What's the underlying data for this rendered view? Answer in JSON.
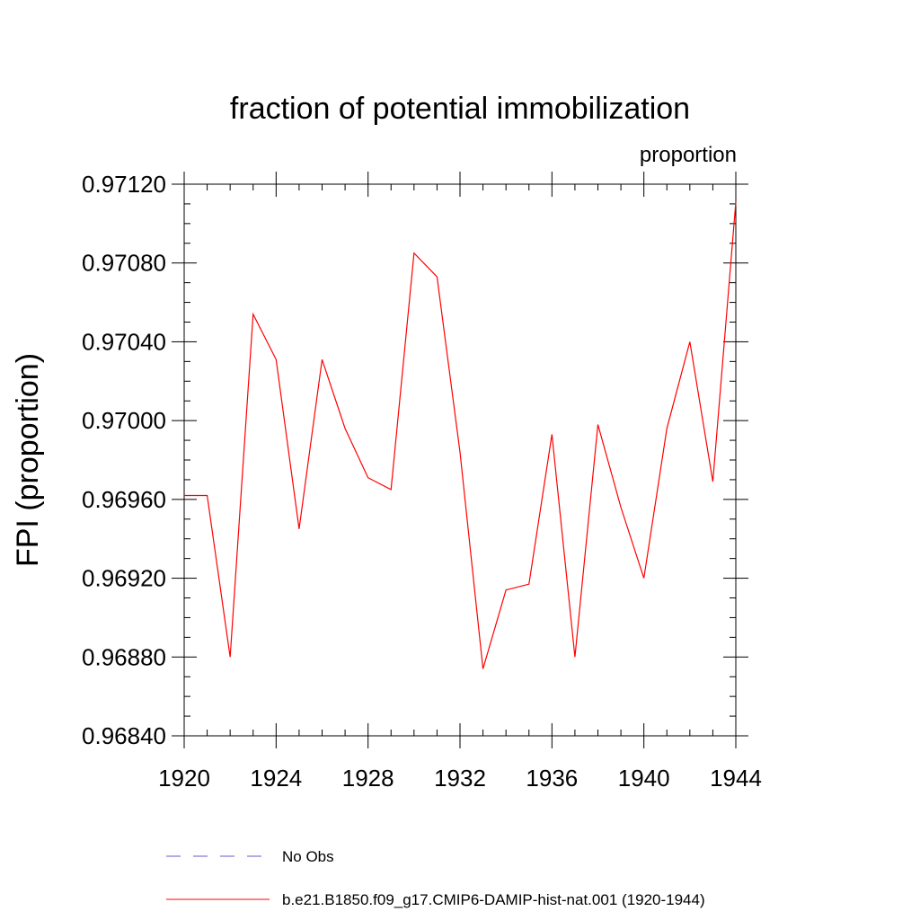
{
  "chart_data": {
    "type": "line",
    "title": "fraction of potential immobilization",
    "units_label": "proportion",
    "ylabel": "FPI  (proportion)",
    "xlabel": "",
    "xlim": [
      1920,
      1944
    ],
    "ylim": [
      0.9684,
      0.9712
    ],
    "x_ticks": [
      "1920",
      "1924",
      "1928",
      "1932",
      "1936",
      "1940",
      "1944"
    ],
    "y_ticks": [
      "0.96840",
      "0.96880",
      "0.96920",
      "0.96960",
      "0.97000",
      "0.97040",
      "0.97080",
      "0.97120"
    ],
    "x": [
      1920,
      1921,
      1922,
      1923,
      1924,
      1925,
      1926,
      1927,
      1928,
      1929,
      1930,
      1931,
      1932,
      1933,
      1934,
      1935,
      1936,
      1937,
      1938,
      1939,
      1940,
      1941,
      1942,
      1943,
      1944
    ],
    "series": [
      {
        "name": "b.e21.B1850.f09_g17.CMIP6-DAMIP-hist-nat.001 (1920-1944)",
        "color": "#ff0000",
        "dash": "solid",
        "values": [
          0.96962,
          0.96962,
          0.9688,
          0.97054,
          0.97031,
          0.96945,
          0.97031,
          0.96996,
          0.96971,
          0.96965,
          0.97085,
          0.97073,
          0.96984,
          0.96874,
          0.96914,
          0.96917,
          0.96993,
          0.9688,
          0.96998,
          0.96956,
          0.9692,
          0.96996,
          0.9704,
          0.96969,
          0.97111
        ]
      }
    ],
    "legend": [
      {
        "label": "No Obs",
        "color": "#6a5acd",
        "dash": "dashed"
      },
      {
        "label": "b.e21.B1850.f09_g17.CMIP6-DAMIP-hist-nat.001 (1920-1944)",
        "color": "#ff0000",
        "dash": "solid"
      }
    ],
    "legend_position": "bottom",
    "grid": false
  }
}
